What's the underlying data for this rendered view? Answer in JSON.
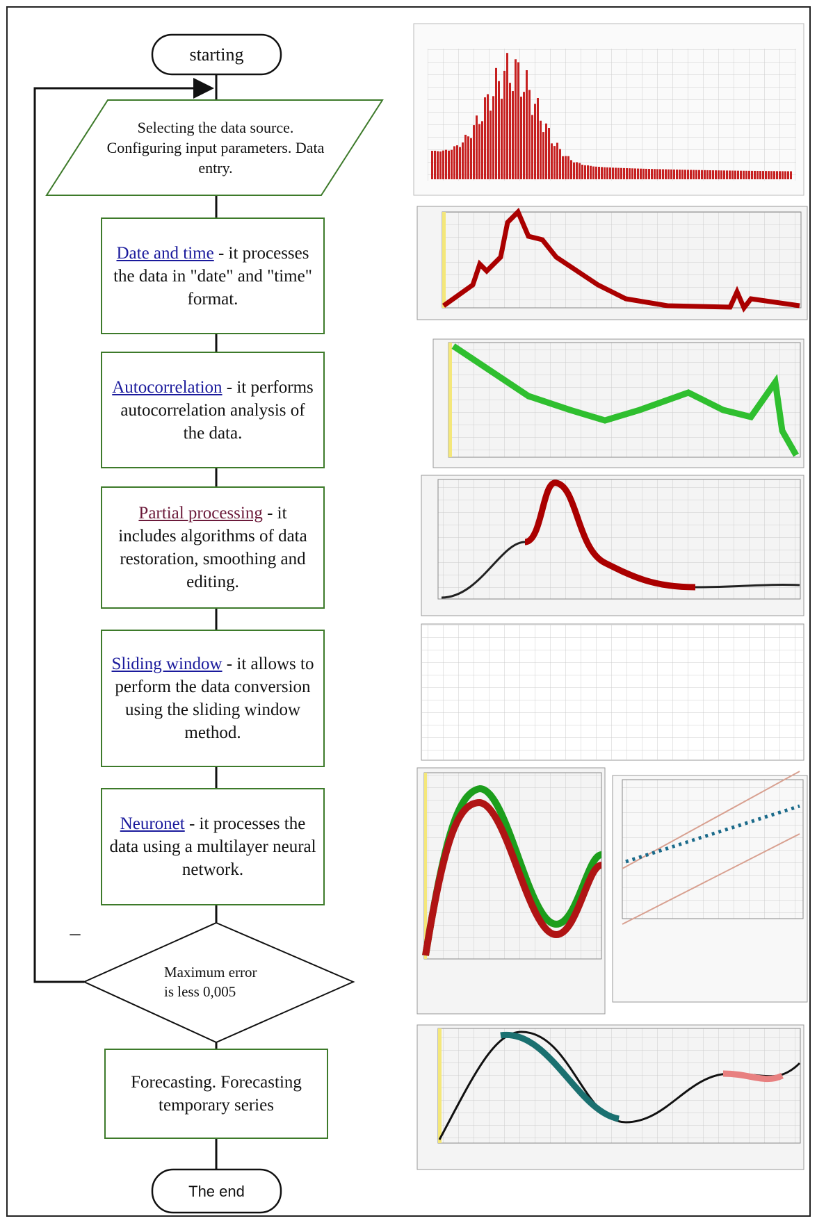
{
  "nodes": [
    {
      "label": "starting"
    },
    {
      "label": "Selecting the data source. Configuring input parameters. Data entry."
    },
    {
      "link": "Date and time",
      "text": " - it processes the data in \"date\" and \"time\" format."
    },
    {
      "link": "Autocorrelation",
      "text": " - it performs autocorrelation analysis of the data."
    },
    {
      "link": "Partial processing",
      "text": " - it includes algorithms of data restoration, smoothing and editing."
    },
    {
      "link": "Sliding window",
      "text": " - it allows to perform the data conversion using the sliding window method."
    },
    {
      "link": "Neuronet",
      "text": " - it processes the data using a multilayer neural network."
    },
    {
      "label": "Maximum error is less 0,005"
    },
    {
      "label": "Forecasting. Forecasting temporary series"
    },
    {
      "label": "The end"
    }
  ],
  "edge_label": "–"
}
